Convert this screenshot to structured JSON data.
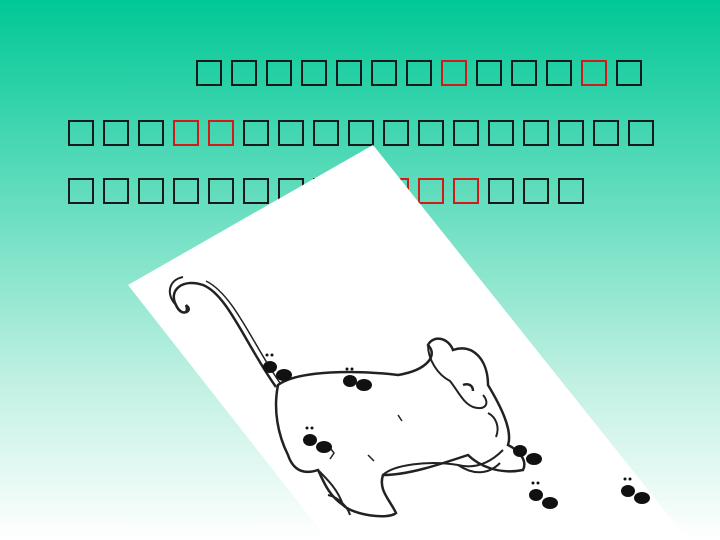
{
  "slide": {
    "text_lines": [
      {
        "glyphs": [
          "□",
          "□",
          "□",
          "□",
          "□",
          "□",
          "□",
          "□",
          "□",
          "□",
          "□",
          "□",
          "□"
        ],
        "highlighted": [
          7,
          11
        ]
      },
      {
        "glyphs": [
          "□",
          "□",
          "□",
          "□",
          "□",
          "□",
          "□",
          "□",
          "□",
          "□",
          "□",
          "□",
          "□",
          "□",
          "□",
          "□",
          "□"
        ],
        "highlighted": [
          3,
          4
        ]
      },
      {
        "glyphs": [
          "□",
          "□",
          "□",
          "□",
          "□",
          "□",
          "□",
          "□",
          "□",
          "□",
          "□",
          "□",
          "□",
          "□",
          "□"
        ],
        "highlighted": [
          9,
          10,
          11
        ]
      }
    ],
    "highlight_color": "#d11a1a",
    "text_color": "#1a1a1a",
    "background_top": "#00c896",
    "background_bottom": "#ffffff"
  },
  "illustration": {
    "subject": "lion-cub-with-ants-drawing"
  }
}
